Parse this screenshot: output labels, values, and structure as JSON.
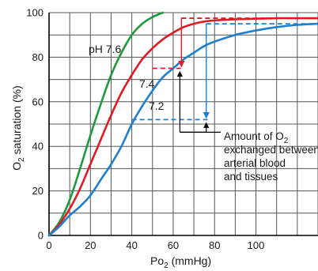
{
  "chart_data": {
    "type": "line",
    "title": "",
    "xlabel": {
      "main": "Po",
      "sub": "2",
      "rest": " (mmHg)"
    },
    "ylabel": {
      "main": "O",
      "sub": "2",
      "rest": " saturation (%)"
    },
    "xlim": [
      0,
      130
    ],
    "ylim": [
      0,
      100
    ],
    "grid": true,
    "x_ticks": [
      0,
      20,
      40,
      60,
      80,
      100
    ],
    "y_ticks": [
      0,
      20,
      40,
      60,
      80,
      100
    ],
    "series": [
      {
        "name": "pH 7.6",
        "color": "#1e9a3c",
        "x": [
          0,
          5,
          10,
          15,
          20,
          25,
          30,
          35,
          40,
          45,
          50,
          55
        ],
        "y": [
          0,
          6,
          16,
          30,
          45,
          59,
          72,
          82,
          90,
          95,
          98,
          100
        ]
      },
      {
        "name": "7.4",
        "color": "#e01b24",
        "x": [
          0,
          5,
          10,
          15,
          20,
          25,
          30,
          35,
          40,
          45,
          50,
          55,
          60,
          65,
          70,
          75,
          80,
          90,
          100,
          110,
          120,
          130
        ],
        "y": [
          0,
          5,
          12,
          21,
          32,
          43,
          54,
          64,
          72,
          79,
          84,
          88,
          91,
          93.5,
          95,
          96,
          96.5,
          97,
          97.3,
          97.5,
          97.5,
          97.5
        ]
      },
      {
        "name": "7.2",
        "color": "#1f7fcf",
        "x": [
          0,
          5,
          10,
          15,
          20,
          25,
          30,
          35,
          40,
          45,
          50,
          55,
          60,
          65,
          70,
          75,
          80,
          90,
          100,
          110,
          120,
          130
        ],
        "y": [
          0,
          4,
          9,
          13,
          18,
          25,
          32,
          40,
          50,
          58,
          65,
          71,
          75,
          79,
          82,
          85,
          87,
          90,
          92,
          93.5,
          94.5,
          95
        ]
      }
    ],
    "annotations": {
      "exchange_label": {
        "line1": "Amount of O",
        "line1_sub": "2",
        "line2": "exchanged between",
        "line3": "arterial blood",
        "line4": "and tissues"
      },
      "red_exchange": {
        "color": "#e01b24",
        "x_venous": 64,
        "x_arterial": 130,
        "y_venous": 75,
        "y_arterial": 97.5,
        "x_arrow": 64,
        "x_venous_left": 50
      },
      "blue_exchange": {
        "color": "#1f7fcf",
        "x_venous": 76,
        "x_arterial": 130,
        "y_venous": 52,
        "y_arterial": 95,
        "x_arrow": 76,
        "x_venous_left": 40
      }
    }
  }
}
